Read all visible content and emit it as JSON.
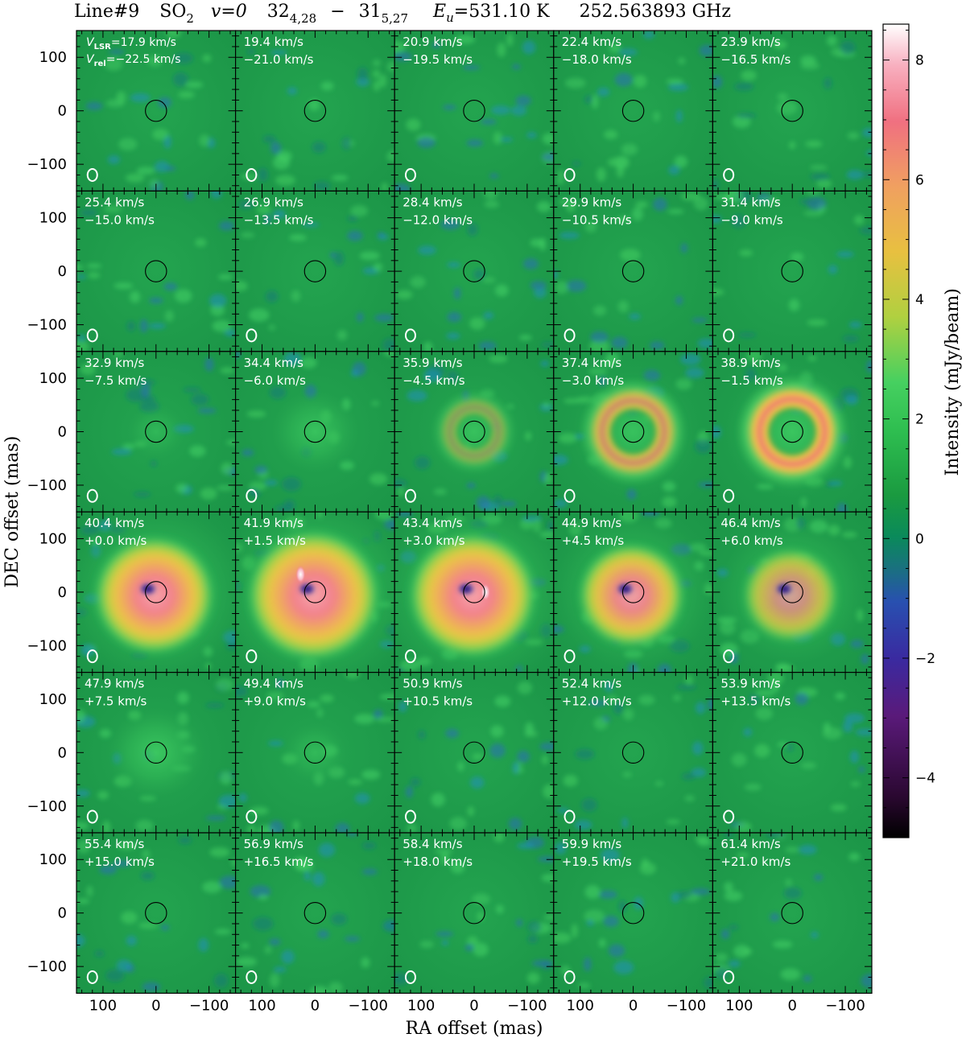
{
  "title": {
    "line": "Line#9",
    "species": "SO",
    "species_sub": "2",
    "vib": "v=0",
    "upper_main": "32",
    "upper_sub": "4,28",
    "dash": "−",
    "lower_main": "31",
    "lower_sub": "5,27",
    "eu_sym": "E",
    "eu_sub": "u",
    "eu_value": "=531.10 K",
    "freq": "252.563893 GHz"
  },
  "chart_data": {
    "type": "heatmap",
    "layout": "channel-map",
    "rows": 6,
    "cols": 5,
    "xlabel": "RA offset (mas)",
    "ylabel": "DEC offset (mas)",
    "colorbar_label": "Intensity (mJy/beam)",
    "xlim": [
      150,
      -150
    ],
    "ylim": [
      -150,
      150
    ],
    "x_ticks": [
      "100",
      "0",
      "−100"
    ],
    "x_tick_values": [
      100,
      0,
      -100
    ],
    "y_ticks": [
      "100",
      "0",
      "−100"
    ],
    "y_tick_values": [
      100,
      0,
      -100
    ],
    "colorbar_range": [
      -5,
      8.6
    ],
    "colorbar_ticks": [
      "8",
      "6",
      "4",
      "2",
      "0",
      "−2",
      "−4"
    ],
    "colorbar_tick_values": [
      8,
      6,
      4,
      2,
      0,
      -2,
      -4
    ],
    "colormap": [
      "#000000",
      "#3a0a3a",
      "#5a1a7a",
      "#3a2aa0",
      "#2850b0",
      "#1a7a8a",
      "#0a8a5a",
      "#1a9a40",
      "#30c050",
      "#40d060",
      "#b0d040",
      "#e8c040",
      "#f0a060",
      "#f07080",
      "#f8a0b0",
      "#ffffff"
    ],
    "stellar_disk_radius_mas": 20,
    "beam_label_first": {
      "v1": "V",
      "v1_sub": "LSR",
      "v1_val": "=17.9 km/s",
      "v2": "V",
      "v2_sub": "rel",
      "v2_val": "=−22.5 km/s"
    },
    "channels": [
      {
        "vlsr": "17.9 km/s",
        "vrel": "−22.5 km/s",
        "peak": 0.2
      },
      {
        "vlsr": "19.4 km/s",
        "vrel": "−21.0 km/s",
        "peak": 0.2
      },
      {
        "vlsr": "20.9 km/s",
        "vrel": "−19.5 km/s",
        "peak": 0.2
      },
      {
        "vlsr": "22.4 km/s",
        "vrel": "−18.0 km/s",
        "peak": 0.2
      },
      {
        "vlsr": "23.9 km/s",
        "vrel": "−16.5 km/s",
        "peak": 0.2
      },
      {
        "vlsr": "25.4 km/s",
        "vrel": "−15.0 km/s",
        "peak": 0.2
      },
      {
        "vlsr": "26.9 km/s",
        "vrel": "−13.5 km/s",
        "peak": 0.2
      },
      {
        "vlsr": "28.4 km/s",
        "vrel": "−12.0 km/s",
        "peak": 0.2
      },
      {
        "vlsr": "29.9 km/s",
        "vrel": "−10.5 km/s",
        "peak": 0.2
      },
      {
        "vlsr": "31.4 km/s",
        "vrel": "−9.0 km/s",
        "peak": 0.3
      },
      {
        "vlsr": "32.9 km/s",
        "vrel": "−7.5 km/s",
        "peak": 0.6
      },
      {
        "vlsr": "34.4 km/s",
        "vrel": "−6.0 km/s",
        "peak": 1.6
      },
      {
        "vlsr": "35.9 km/s",
        "vrel": "−4.5 km/s",
        "peak": 3.0
      },
      {
        "vlsr": "37.4 km/s",
        "vrel": "−3.0 km/s",
        "peak": 5.5
      },
      {
        "vlsr": "38.9 km/s",
        "vrel": "−1.5 km/s",
        "peak": 6.8
      },
      {
        "vlsr": "40.4 km/s",
        "vrel": "+0.0 km/s",
        "peak": 7.2
      },
      {
        "vlsr": "41.9 km/s",
        "vrel": "+1.5 km/s",
        "peak": 8.4
      },
      {
        "vlsr": "43.4 km/s",
        "vrel": "+3.0 km/s",
        "peak": 7.9
      },
      {
        "vlsr": "44.9 km/s",
        "vrel": "+4.5 km/s",
        "peak": 5.8
      },
      {
        "vlsr": "46.4 km/s",
        "vrel": "+6.0 km/s",
        "peak": 4.8
      },
      {
        "vlsr": "47.9 km/s",
        "vrel": "+7.5 km/s",
        "peak": 2.0
      },
      {
        "vlsr": "49.4 km/s",
        "vrel": "+9.0 km/s",
        "peak": 0.8
      },
      {
        "vlsr": "50.9 km/s",
        "vrel": "+10.5 km/s",
        "peak": 0.3
      },
      {
        "vlsr": "52.4 km/s",
        "vrel": "+12.0 km/s",
        "peak": 0.2
      },
      {
        "vlsr": "53.9 km/s",
        "vrel": "+13.5 km/s",
        "peak": 0.2
      },
      {
        "vlsr": "55.4 km/s",
        "vrel": "+15.0 km/s",
        "peak": 0.2
      },
      {
        "vlsr": "56.9 km/s",
        "vrel": "+16.5 km/s",
        "peak": 0.2
      },
      {
        "vlsr": "58.4 km/s",
        "vrel": "+18.0 km/s",
        "peak": 0.2
      },
      {
        "vlsr": "59.9 km/s",
        "vrel": "+19.5 km/s",
        "peak": 0.2
      },
      {
        "vlsr": "61.4 km/s",
        "vrel": "+21.0 km/s",
        "peak": 0.2
      }
    ]
  }
}
